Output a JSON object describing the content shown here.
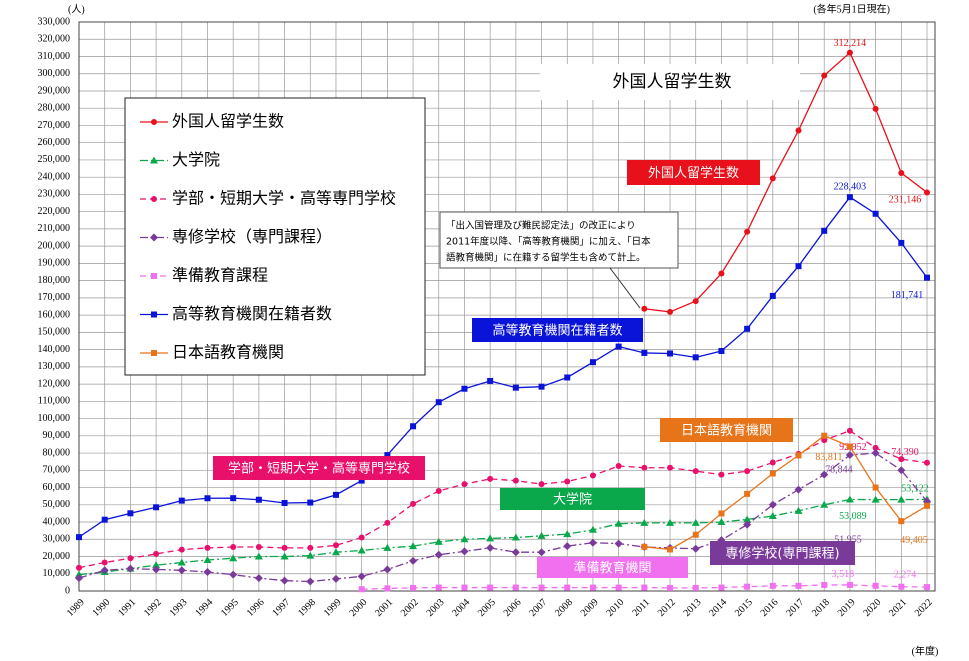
{
  "chart_data": {
    "type": "line",
    "title": "外国人留学生数",
    "y_unit": "(人)",
    "x_unit": "(年度)",
    "note": "(各年5月1日現在)",
    "annotation_lines": [
      "「出入国管理及び難民認定法」の改正により",
      "2011年度以降、「高等教育機関」に加え、「日本",
      "語教育機関」に在籍する留学生も含めて計上。"
    ],
    "callouts": [
      {
        "text": "外国人留学生数",
        "color": "#e8101a"
      },
      {
        "text": "高等教育機関在籍者数",
        "color": "#0a14d8"
      },
      {
        "text": "学部・短期大学・高等専門学校",
        "color": "#e8106a"
      },
      {
        "text": "大学院",
        "color": "#0aa84a"
      },
      {
        "text": "準備教育機関",
        "color": "#f070f0"
      },
      {
        "text": "専修学校(専門課程)",
        "color": "#7a3a9a"
      },
      {
        "text": "日本語教育機関",
        "color": "#e8741a"
      }
    ],
    "categories": [
      "1989",
      "1990",
      "1991",
      "1992",
      "1993",
      "1994",
      "1995",
      "1996",
      "1997",
      "1998",
      "1999",
      "2000",
      "2001",
      "2002",
      "2003",
      "2004",
      "2005",
      "2006",
      "2007",
      "2008",
      "2009",
      "2010",
      "2011",
      "2012",
      "2013",
      "2014",
      "2015",
      "2016",
      "2017",
      "2018",
      "2019",
      "2020",
      "2021",
      "2022"
    ],
    "ylim": [
      0,
      330000
    ],
    "yticks": [
      {
        "value": 0,
        "label": "0"
      },
      {
        "value": 10000,
        "label": "10,000"
      },
      {
        "value": 20000,
        "label": "20,000"
      },
      {
        "value": 30000,
        "label": "30,000"
      },
      {
        "value": 40000,
        "label": "40,000"
      },
      {
        "value": 50000,
        "label": "50,000"
      },
      {
        "value": 60000,
        "label": "60,000"
      },
      {
        "value": 70000,
        "label": "70,000"
      },
      {
        "value": 80000,
        "label": "80,000"
      },
      {
        "value": 90000,
        "label": "90,000"
      },
      {
        "value": 100000,
        "label": "100,000"
      },
      {
        "value": 110000,
        "label": "110,000"
      },
      {
        "value": 120000,
        "label": "120,000"
      },
      {
        "value": 130000,
        "label": "130,000"
      },
      {
        "value": 140000,
        "label": "140,000"
      },
      {
        "value": 150000,
        "label": "150,000"
      },
      {
        "value": 160000,
        "label": "160,000"
      },
      {
        "value": 170000,
        "label": "170,000"
      },
      {
        "value": 180000,
        "label": "180,000"
      },
      {
        "value": 190000,
        "label": "190,000"
      },
      {
        "value": 200000,
        "label": "200,000"
      },
      {
        "value": 210000,
        "label": "210,000"
      },
      {
        "value": 220000,
        "label": "220,000"
      },
      {
        "value": 230000,
        "label": "230,000"
      },
      {
        "value": 240000,
        "label": "240,000"
      },
      {
        "value": 250000,
        "label": "250,000"
      },
      {
        "value": 260000,
        "label": "260,000"
      },
      {
        "value": 270000,
        "label": "270,000"
      },
      {
        "value": 280000,
        "label": "280,000"
      },
      {
        "value": 290000,
        "label": "290,000"
      },
      {
        "value": 300000,
        "label": "300,000"
      },
      {
        "value": 310000,
        "label": "310,000"
      },
      {
        "value": 320000,
        "label": "320,000"
      },
      {
        "value": 330000,
        "label": "330,000"
      }
    ],
    "grid": true,
    "series": [
      {
        "name": "外国人留学生数",
        "color": "#e8101a",
        "marker": "circle",
        "line_style": "solid",
        "values": [
          null,
          null,
          null,
          null,
          null,
          null,
          null,
          null,
          null,
          null,
          null,
          null,
          null,
          null,
          null,
          null,
          null,
          null,
          null,
          null,
          null,
          null,
          163697,
          161848,
          168145,
          184155,
          208379,
          239287,
          267042,
          298980,
          312214,
          279597,
          242444,
          231146
        ],
        "value_labels": [
          null,
          null,
          null,
          null,
          null,
          null,
          null,
          null,
          null,
          null,
          null,
          null,
          null,
          null,
          null,
          null,
          null,
          null,
          null,
          null,
          null,
          null,
          null,
          null,
          null,
          null,
          null,
          null,
          null,
          null,
          "312,214",
          null,
          null,
          "231,146"
        ]
      },
      {
        "name": "大学院",
        "color": "#0aa84a",
        "marker": "triangle",
        "line_style": "dashdot",
        "values": [
          9500,
          11000,
          13000,
          15000,
          16500,
          18000,
          19000,
          20000,
          20000,
          20500,
          22500,
          23500,
          25000,
          26000,
          28500,
          30000,
          30500,
          31000,
          32000,
          33000,
          35500,
          39000,
          39500,
          39500,
          39500,
          40000,
          41500,
          43500,
          46500,
          50000,
          53089,
          53000,
          53000,
          53122
        ],
        "value_labels": [
          null,
          null,
          null,
          null,
          null,
          null,
          null,
          null,
          null,
          null,
          null,
          null,
          null,
          null,
          null,
          null,
          null,
          null,
          null,
          null,
          null,
          null,
          null,
          null,
          null,
          null,
          null,
          null,
          null,
          null,
          "53,089",
          null,
          null,
          "53,122"
        ]
      },
      {
        "name": "学部・短期大学・高等専門学校",
        "color": "#e8106a",
        "marker": "circle",
        "line_style": "dashed",
        "values": [
          13500,
          16500,
          19000,
          21500,
          24000,
          25000,
          25500,
          25500,
          25000,
          25000,
          26500,
          31000,
          39500,
          50500,
          58000,
          62000,
          65000,
          64000,
          62000,
          63500,
          67000,
          72500,
          71500,
          71500,
          69500,
          67500,
          69500,
          74500,
          79500,
          87500,
          92952,
          83000,
          76500,
          74390
        ],
        "value_labels": [
          null,
          null,
          null,
          null,
          null,
          null,
          null,
          null,
          null,
          null,
          null,
          null,
          null,
          null,
          null,
          null,
          null,
          null,
          null,
          null,
          null,
          null,
          null,
          null,
          null,
          null,
          null,
          null,
          null,
          null,
          "92,952",
          null,
          null,
          "74,390"
        ]
      },
      {
        "name": "専修学校（専門課程）",
        "color": "#7a3a9a",
        "marker": "diamond",
        "line_style": "dashdot",
        "values": [
          7500,
          12000,
          13000,
          12500,
          12000,
          11000,
          9500,
          7500,
          6000,
          5500,
          7000,
          8500,
          12500,
          17500,
          21000,
          23000,
          25000,
          22500,
          22500,
          26000,
          28000,
          27500,
          25500,
          25000,
          24500,
          29500,
          38500,
          50000,
          58800,
          67500,
          78844,
          80000,
          70000,
          51955
        ],
        "value_labels": [
          null,
          null,
          null,
          null,
          null,
          null,
          null,
          null,
          null,
          null,
          null,
          null,
          null,
          null,
          null,
          null,
          null,
          null,
          null,
          null,
          null,
          null,
          null,
          null,
          null,
          null,
          null,
          null,
          null,
          null,
          "78,844",
          null,
          null,
          "51,955"
        ]
      },
      {
        "name": "準備教育課程",
        "color": "#f070f0",
        "marker": "square",
        "line_style": "dashed",
        "values": [
          null,
          null,
          null,
          null,
          null,
          null,
          null,
          null,
          null,
          null,
          null,
          1000,
          1500,
          1800,
          2000,
          2000,
          2000,
          2000,
          2000,
          2000,
          2000,
          2000,
          2000,
          1800,
          1800,
          2000,
          2500,
          3000,
          3000,
          3500,
          3518,
          3000,
          2500,
          2274
        ],
        "value_labels": [
          null,
          null,
          null,
          null,
          null,
          null,
          null,
          null,
          null,
          null,
          null,
          null,
          null,
          null,
          null,
          null,
          null,
          null,
          null,
          null,
          null,
          null,
          null,
          null,
          null,
          null,
          null,
          null,
          null,
          null,
          "3,518",
          null,
          null,
          "2,274"
        ]
      },
      {
        "name": "高等教育機関在籍者数",
        "color": "#0a14d8",
        "marker": "square",
        "line_style": "solid",
        "values": [
          31251,
          41347,
          45066,
          48561,
          52405,
          53787,
          53847,
          52921,
          51047,
          51298,
          55755,
          64011,
          78812,
          95550,
          109508,
          117302,
          121812,
          117927,
          118498,
          123829,
          132720,
          141774,
          138075,
          137756,
          135519,
          139185,
          152062,
          171122,
          188384,
          208901,
          228403,
          218783,
          201877,
          181741
        ],
        "value_labels": [
          null,
          null,
          null,
          null,
          null,
          null,
          null,
          null,
          null,
          null,
          null,
          null,
          null,
          null,
          null,
          null,
          null,
          null,
          null,
          null,
          null,
          null,
          null,
          null,
          null,
          null,
          null,
          null,
          null,
          null,
          "228,403",
          null,
          null,
          "181,741"
        ]
      },
      {
        "name": "日本語教育機関",
        "color": "#e8741a",
        "marker": "square",
        "line_style": "solid",
        "values": [
          null,
          null,
          null,
          null,
          null,
          null,
          null,
          null,
          null,
          null,
          null,
          null,
          null,
          null,
          null,
          null,
          null,
          null,
          null,
          null,
          null,
          null,
          25622,
          24092,
          32626,
          44970,
          56317,
          68165,
          78658,
          90079,
          83811,
          60000,
          40500,
          49405
        ],
        "value_labels": [
          null,
          null,
          null,
          null,
          null,
          null,
          null,
          null,
          null,
          null,
          null,
          null,
          null,
          null,
          null,
          null,
          null,
          null,
          null,
          null,
          null,
          null,
          null,
          null,
          null,
          null,
          null,
          null,
          null,
          null,
          "83,811",
          null,
          null,
          "49,405"
        ]
      }
    ]
  }
}
